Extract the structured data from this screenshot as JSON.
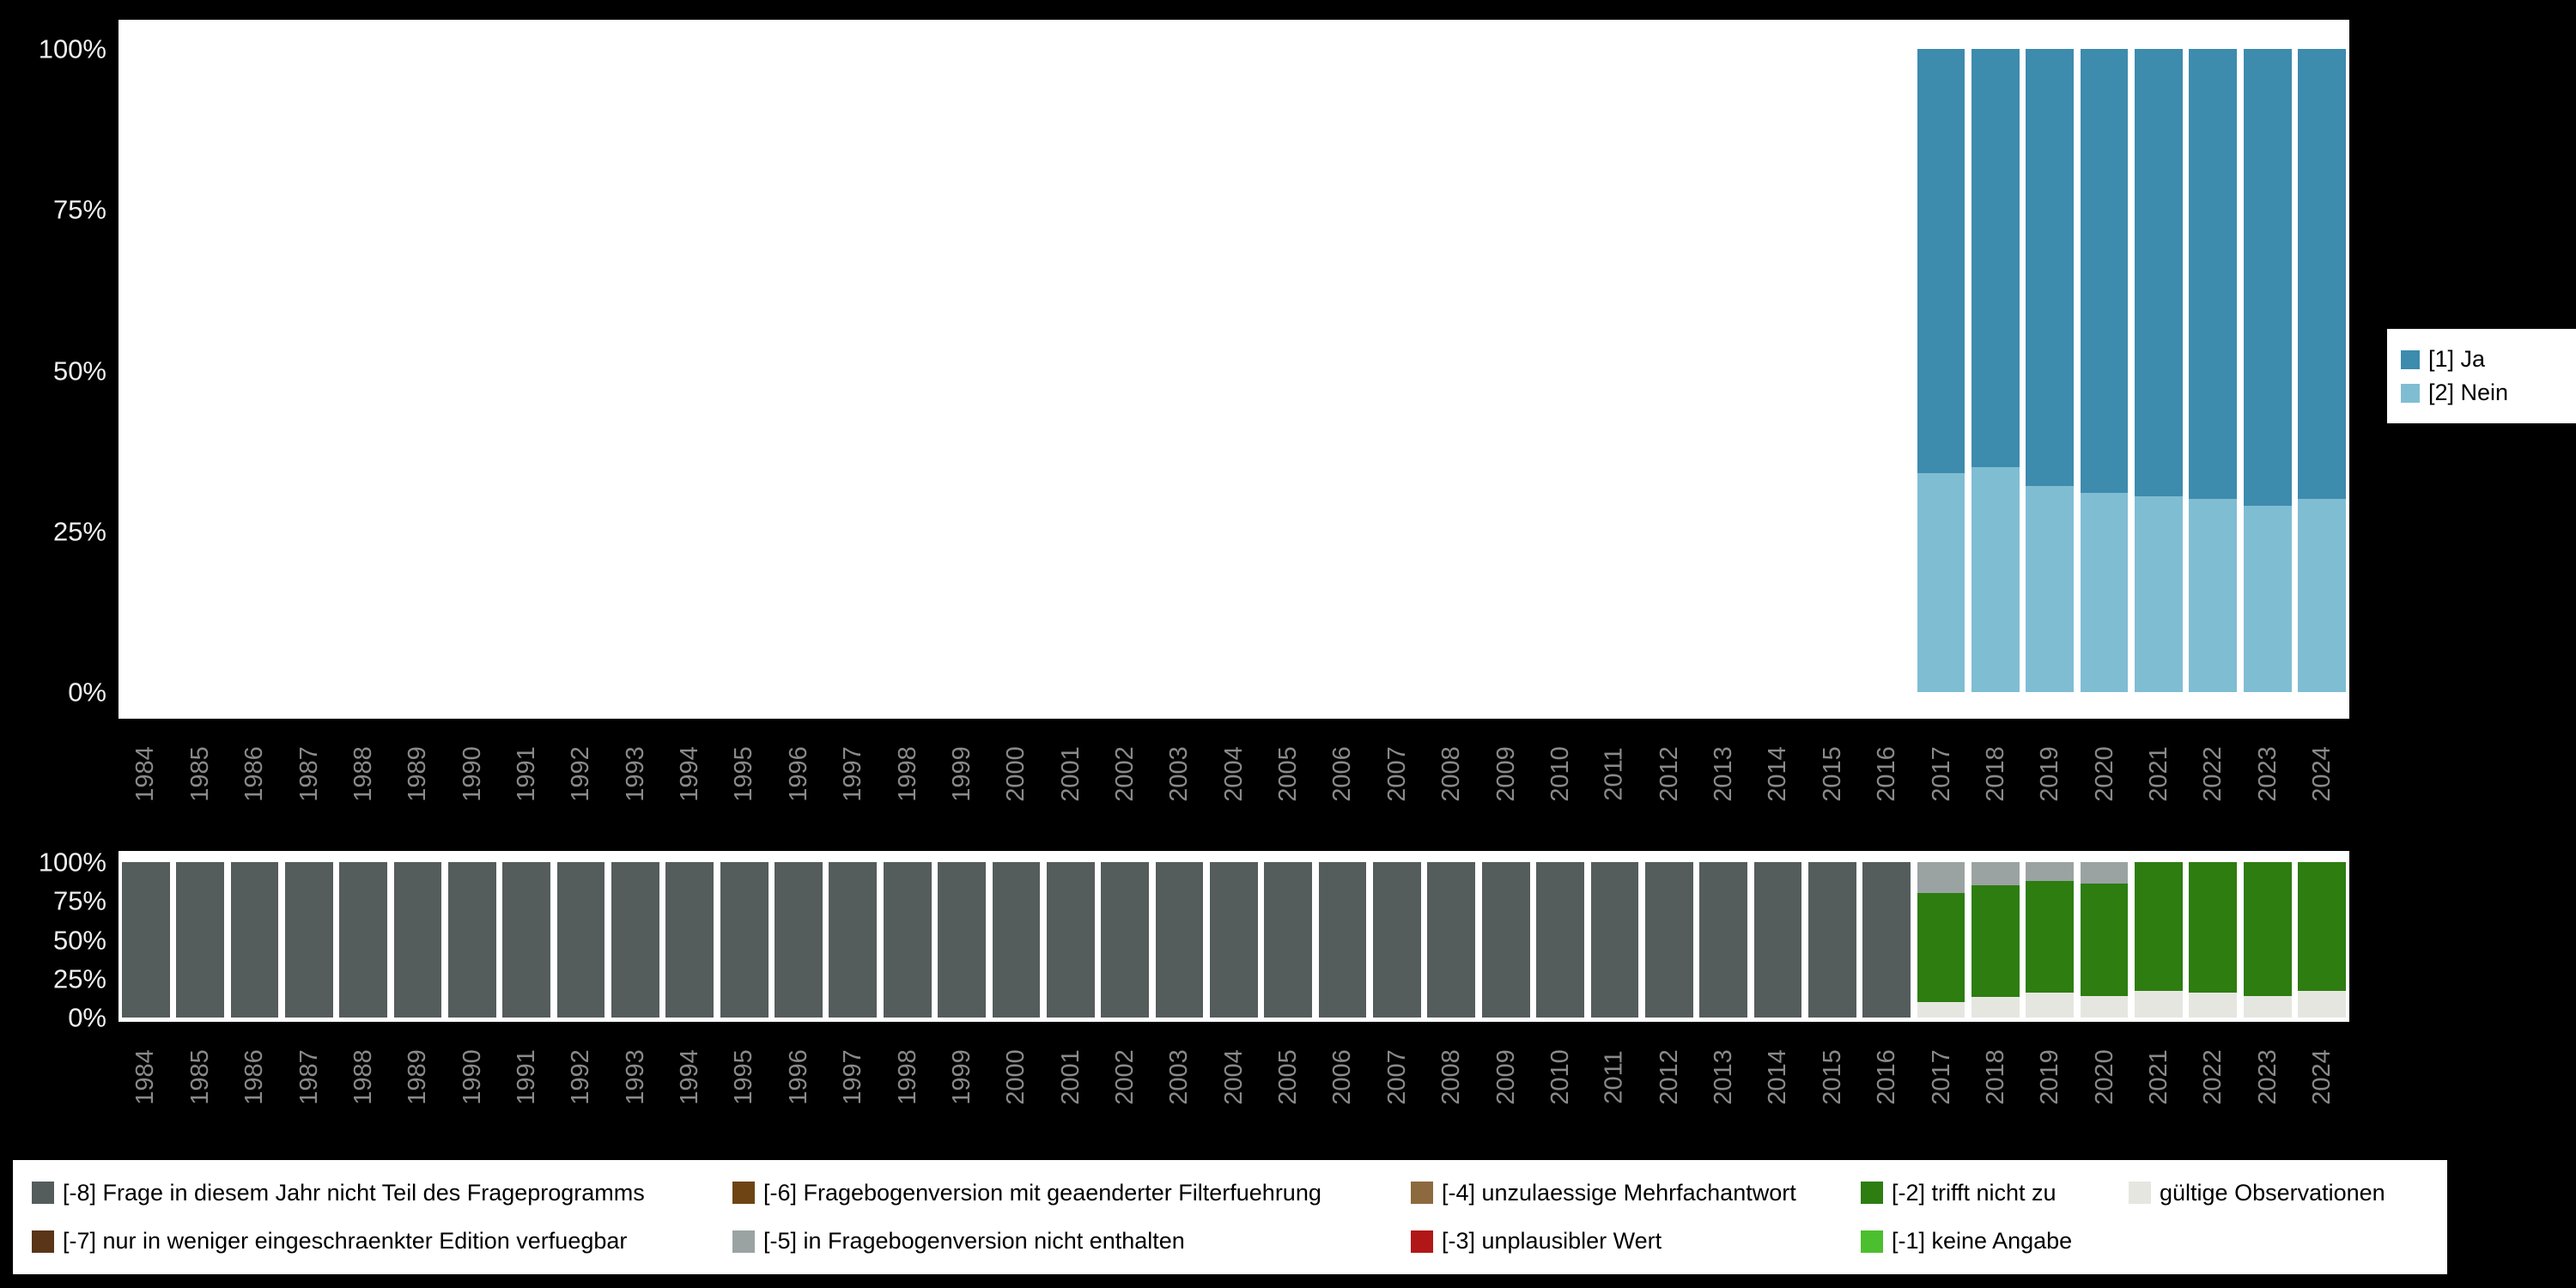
{
  "colors": {
    "background": "#000000",
    "panel": "#ffffff",
    "year_tick_label": "#8a8a8a",
    "percent_tick_label": "#f0f0f0"
  },
  "chart_data": [
    {
      "id": "values",
      "type": "bar",
      "stacked": true,
      "title": "",
      "xlabel": "",
      "ylabel": "",
      "ylim": [
        0,
        100
      ],
      "grid": false,
      "legend_position": "right",
      "yticks": [
        0,
        25,
        50,
        75,
        100
      ],
      "ytick_labels": [
        "0%",
        "25%",
        "50%",
        "75%",
        "100%"
      ],
      "categories": [
        "1984",
        "1985",
        "1986",
        "1987",
        "1988",
        "1989",
        "1990",
        "1991",
        "1992",
        "1993",
        "1994",
        "1995",
        "1996",
        "1997",
        "1998",
        "1999",
        "2000",
        "2001",
        "2002",
        "2003",
        "2004",
        "2005",
        "2006",
        "2007",
        "2008",
        "2009",
        "2010",
        "2011",
        "2012",
        "2013",
        "2014",
        "2015",
        "2016",
        "2017",
        "2018",
        "2019",
        "2020",
        "2021",
        "2022",
        "2023",
        "2024"
      ],
      "series": [
        {
          "name": "[2] Nein",
          "color": "#7fbdd3",
          "values": [
            0,
            0,
            0,
            0,
            0,
            0,
            0,
            0,
            0,
            0,
            0,
            0,
            0,
            0,
            0,
            0,
            0,
            0,
            0,
            0,
            0,
            0,
            0,
            0,
            0,
            0,
            0,
            0,
            0,
            0,
            0,
            0,
            0,
            34,
            35,
            32,
            31,
            30.5,
            30,
            29,
            30
          ]
        },
        {
          "name": "[1] Ja",
          "color": "#3d8bad",
          "values": [
            0,
            0,
            0,
            0,
            0,
            0,
            0,
            0,
            0,
            0,
            0,
            0,
            0,
            0,
            0,
            0,
            0,
            0,
            0,
            0,
            0,
            0,
            0,
            0,
            0,
            0,
            0,
            0,
            0,
            0,
            0,
            0,
            0,
            66,
            65,
            68,
            69,
            69.5,
            70,
            71,
            70
          ]
        }
      ],
      "legend": [
        {
          "label": "[1] Ja",
          "color": "#3d8bad"
        },
        {
          "label": "[2] Nein",
          "color": "#7fbdd3"
        }
      ]
    },
    {
      "id": "missings",
      "type": "bar",
      "stacked": true,
      "title": "",
      "xlabel": "",
      "ylabel": "",
      "ylim": [
        0,
        100
      ],
      "grid": false,
      "legend_position": "bottom",
      "yticks": [
        0,
        25,
        50,
        75,
        100
      ],
      "ytick_labels": [
        "0%",
        "25%",
        "50%",
        "75%",
        "100%"
      ],
      "categories": [
        "1984",
        "1985",
        "1986",
        "1987",
        "1988",
        "1989",
        "1990",
        "1991",
        "1992",
        "1993",
        "1994",
        "1995",
        "1996",
        "1997",
        "1998",
        "1999",
        "2000",
        "2001",
        "2002",
        "2003",
        "2004",
        "2005",
        "2006",
        "2007",
        "2008",
        "2009",
        "2010",
        "2011",
        "2012",
        "2013",
        "2014",
        "2015",
        "2016",
        "2017",
        "2018",
        "2019",
        "2020",
        "2021",
        "2022",
        "2023",
        "2024"
      ],
      "series": [
        {
          "name": "gültige Observationen",
          "color": "#e6e6e1",
          "values": [
            0,
            0,
            0,
            0,
            0,
            0,
            0,
            0,
            0,
            0,
            0,
            0,
            0,
            0,
            0,
            0,
            0,
            0,
            0,
            0,
            0,
            0,
            0,
            0,
            0,
            0,
            0,
            0,
            0,
            0,
            0,
            0,
            0,
            10,
            13,
            16,
            14,
            17,
            16,
            14,
            17
          ]
        },
        {
          "name": "[-2] trifft nicht zu",
          "color": "#2d7d10",
          "values": [
            0,
            0,
            0,
            0,
            0,
            0,
            0,
            0,
            0,
            0,
            0,
            0,
            0,
            0,
            0,
            0,
            0,
            0,
            0,
            0,
            0,
            0,
            0,
            0,
            0,
            0,
            0,
            0,
            0,
            0,
            0,
            0,
            0,
            70,
            72,
            72,
            72,
            83,
            84,
            86,
            83
          ]
        },
        {
          "name": "[-5] in Fragebogenversion nicht enthalten",
          "color": "#9aa3a2",
          "values": [
            0,
            0,
            0,
            0,
            0,
            0,
            0,
            0,
            0,
            0,
            0,
            0,
            0,
            0,
            0,
            0,
            0,
            0,
            0,
            0,
            0,
            0,
            0,
            0,
            0,
            0,
            0,
            0,
            0,
            0,
            0,
            0,
            0,
            20,
            15,
            12,
            14,
            0,
            0,
            0,
            0
          ]
        },
        {
          "name": "[-8] Frage in diesem Jahr nicht Teil des Frageprogramms",
          "color": "#545c5c",
          "values": [
            100,
            100,
            100,
            100,
            100,
            100,
            100,
            100,
            100,
            100,
            100,
            100,
            100,
            100,
            100,
            100,
            100,
            100,
            100,
            100,
            100,
            100,
            100,
            100,
            100,
            100,
            100,
            100,
            100,
            100,
            100,
            100,
            100,
            0,
            0,
            0,
            0,
            0,
            0,
            0,
            0
          ]
        }
      ],
      "legend_rows": [
        [
          {
            "label": "[-8] Frage in diesem Jahr nicht Teil des Frageprogramms",
            "color": "#545c5c"
          },
          {
            "label": "[-6] Fragebogenversion mit geaenderter Filterfuehrung",
            "color": "#6e4414"
          },
          {
            "label": "[-4] unzulaessige Mehrfachantwort",
            "color": "#8c6a3e"
          },
          {
            "label": "[-2] trifft nicht zu",
            "color": "#2d7d10"
          },
          {
            "label": "gültige Observationen",
            "color": "#e6e6e1"
          }
        ],
        [
          {
            "label": "[-7] nur in weniger eingeschraenkter Edition verfuegbar",
            "color": "#5a3517"
          },
          {
            "label": "[-5] in Fragebogenversion nicht enthalten",
            "color": "#9aa3a2"
          },
          {
            "label": "[-3] unplausibler Wert",
            "color": "#b11717"
          },
          {
            "label": "[-1] keine Angabe",
            "color": "#4cbf2f"
          }
        ]
      ]
    }
  ]
}
